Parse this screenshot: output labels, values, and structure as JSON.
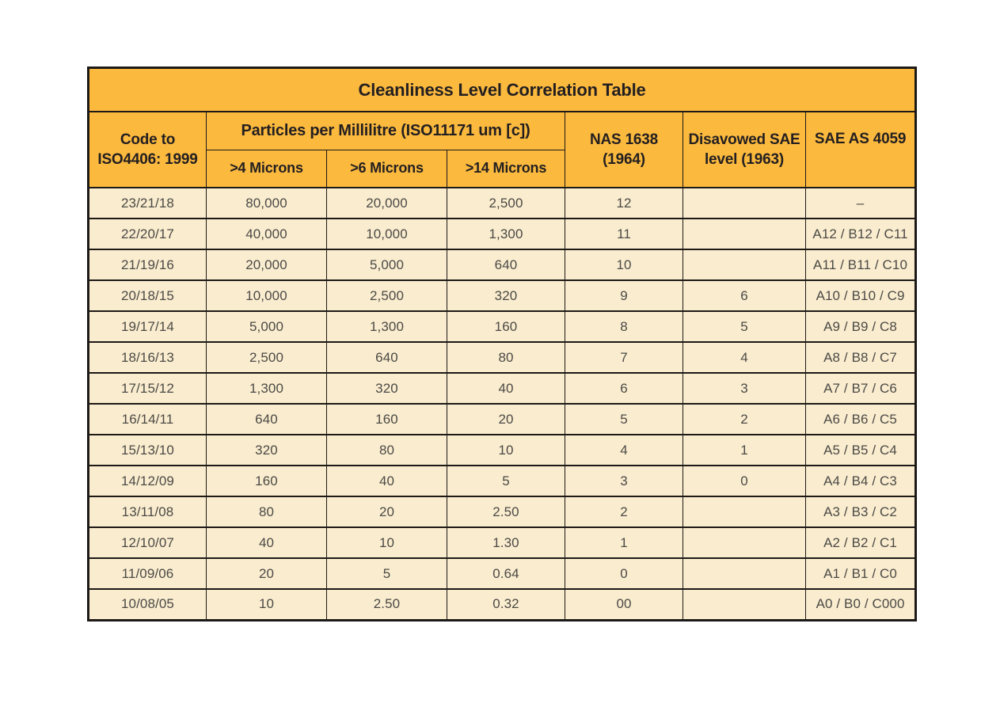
{
  "title": "Cleanliness Level Correlation Table",
  "header": {
    "code_line1": "Code to",
    "code_line2": "ISO4406: 1999",
    "particles_group": "Particles per Millilitre (ISO11171 um [c])",
    "sub_micron_4": ">4 Microns",
    "sub_micron_6": ">6 Microns",
    "sub_micron_14": ">14 Microns",
    "nas_line1": "NAS 1638",
    "nas_line2": "(1964)",
    "disavowed_line1": "Disavowed SAE",
    "disavowed_line2": "level (1963)",
    "sae_as": "SAE AS 4059"
  },
  "row_keys": [
    "code",
    "m4",
    "m6",
    "m14",
    "nas",
    "sae_level",
    "sae_as"
  ],
  "rows": [
    {
      "code": "23/21/18",
      "m4": "80,000",
      "m6": "20,000",
      "m14": "2,500",
      "nas": "12",
      "sae_level": "",
      "sae_as": "–"
    },
    {
      "code": "22/20/17",
      "m4": "40,000",
      "m6": "10,000",
      "m14": "1,300",
      "nas": "11",
      "sae_level": "",
      "sae_as": "A12 / B12 / C11"
    },
    {
      "code": "21/19/16",
      "m4": "20,000",
      "m6": "5,000",
      "m14": "640",
      "nas": "10",
      "sae_level": "",
      "sae_as": "A11 / B11 / C10"
    },
    {
      "code": "20/18/15",
      "m4": "10,000",
      "m6": "2,500",
      "m14": "320",
      "nas": "9",
      "sae_level": "6",
      "sae_as": "A10 / B10 / C9"
    },
    {
      "code": "19/17/14",
      "m4": "5,000",
      "m6": "1,300",
      "m14": "160",
      "nas": "8",
      "sae_level": "5",
      "sae_as": "A9 / B9 / C8"
    },
    {
      "code": "18/16/13",
      "m4": "2,500",
      "m6": "640",
      "m14": "80",
      "nas": "7",
      "sae_level": "4",
      "sae_as": "A8 / B8 / C7"
    },
    {
      "code": "17/15/12",
      "m4": "1,300",
      "m6": "320",
      "m14": "40",
      "nas": "6",
      "sae_level": "3",
      "sae_as": "A7 / B7 / C6"
    },
    {
      "code": "16/14/11",
      "m4": "640",
      "m6": "160",
      "m14": "20",
      "nas": "5",
      "sae_level": "2",
      "sae_as": "A6 / B6 / C5"
    },
    {
      "code": "15/13/10",
      "m4": "320",
      "m6": "80",
      "m14": "10",
      "nas": "4",
      "sae_level": "1",
      "sae_as": "A5 / B5 / C4"
    },
    {
      "code": "14/12/09",
      "m4": "160",
      "m6": "40",
      "m14": "5",
      "nas": "3",
      "sae_level": "0",
      "sae_as": "A4 / B4 / C3"
    },
    {
      "code": "13/11/08",
      "m4": "80",
      "m6": "20",
      "m14": "2.50",
      "nas": "2",
      "sae_level": "",
      "sae_as": "A3 / B3 / C2"
    },
    {
      "code": "12/10/07",
      "m4": "40",
      "m6": "10",
      "m14": "1.30",
      "nas": "1",
      "sae_level": "",
      "sae_as": "A2 / B2 / C1"
    },
    {
      "code": "11/09/06",
      "m4": "20",
      "m6": "5",
      "m14": "0.64",
      "nas": "0",
      "sae_level": "",
      "sae_as": "A1 / B1 / C0"
    },
    {
      "code": "10/08/05",
      "m4": "10",
      "m6": "2.50",
      "m14": "0.32",
      "nas": "00",
      "sae_level": "",
      "sae_as": "A0 / B0 / C000"
    }
  ],
  "colors": {
    "page_bg": "#FFFFFF",
    "header_bg": "#FBB93E",
    "row_bg": "#FAECCE",
    "border": "#1C1917",
    "header_text": "#231F20",
    "data_text": "#4B4A47"
  }
}
